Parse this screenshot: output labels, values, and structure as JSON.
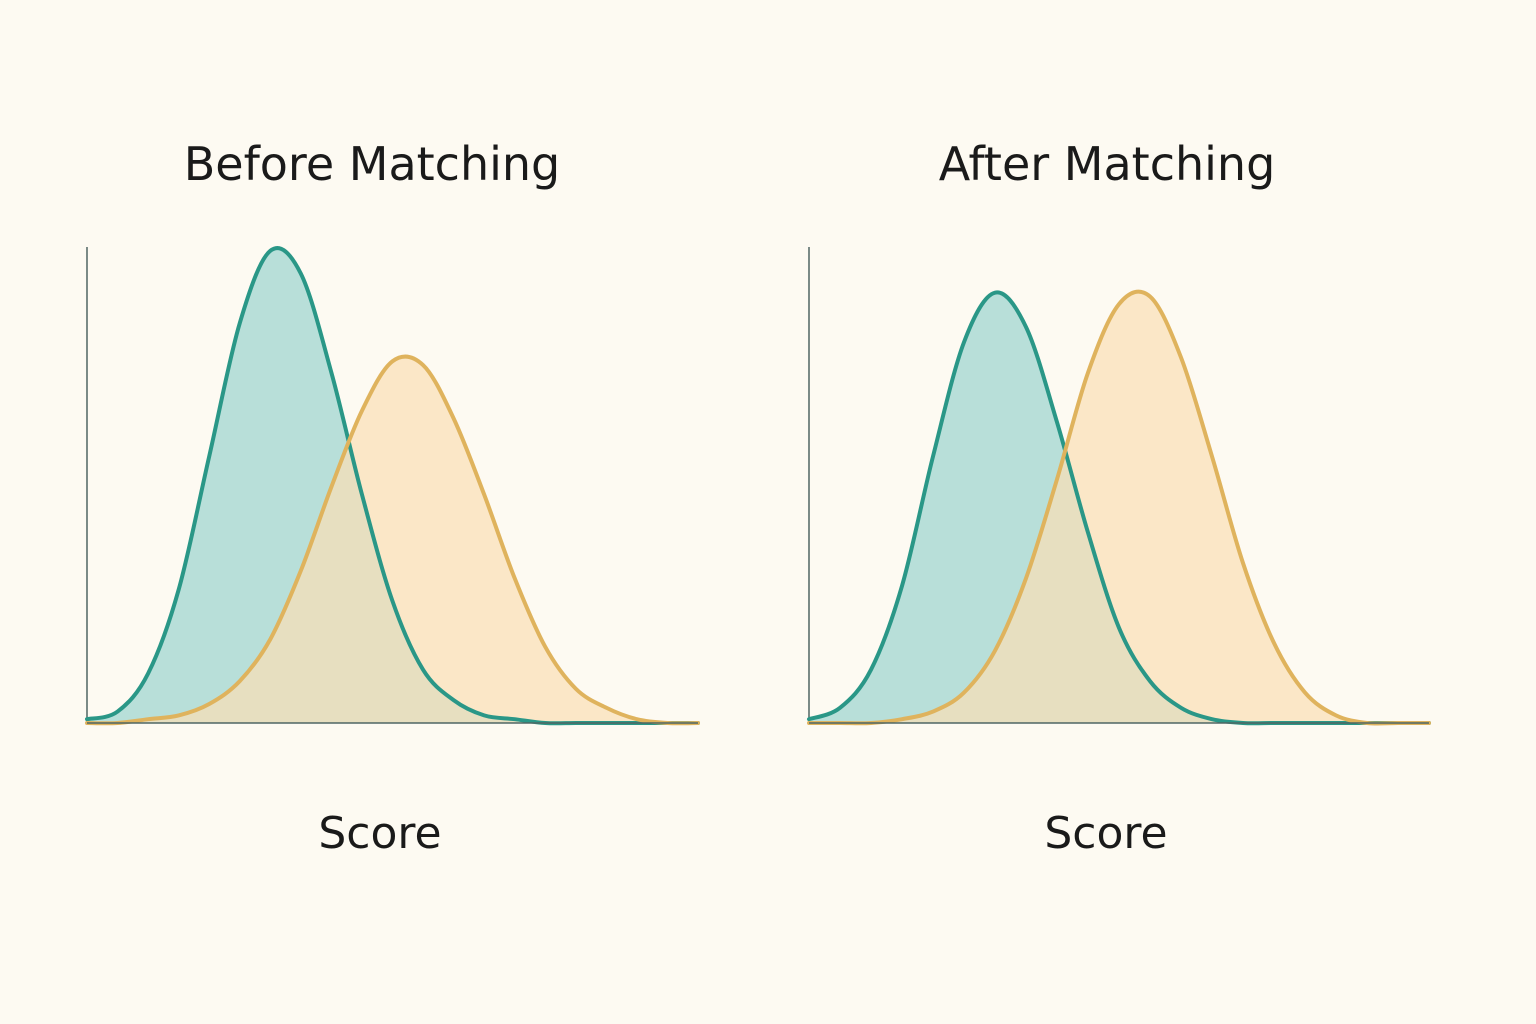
{
  "chart_data": [
    {
      "type": "area",
      "title": "Before Matching",
      "xlabel": "Score",
      "ylabel": "",
      "xlim": [
        0,
        10
      ],
      "ylim": [
        0,
        1.25
      ],
      "grid": false,
      "legend": "none",
      "x": [
        0.0,
        0.5,
        1.0,
        1.5,
        2.0,
        2.5,
        3.0,
        3.5,
        4.0,
        4.5,
        5.0,
        5.5,
        6.0,
        6.5,
        7.0,
        7.5,
        8.0,
        8.5,
        9.0,
        9.5,
        10.0
      ],
      "series": [
        {
          "color": "#2a9787",
          "fill": "#b4ddd7",
          "values": [
            0.01,
            0.03,
            0.13,
            0.35,
            0.7,
            1.05,
            1.24,
            1.18,
            0.92,
            0.6,
            0.32,
            0.14,
            0.06,
            0.02,
            0.01,
            0.0,
            0.0,
            0.0,
            0.0,
            0.0,
            0.0
          ]
        },
        {
          "color": "#dfb35d",
          "fill": "#f9dfb6",
          "values": [
            0.0,
            0.0,
            0.01,
            0.02,
            0.05,
            0.11,
            0.22,
            0.4,
            0.62,
            0.82,
            0.95,
            0.94,
            0.8,
            0.6,
            0.38,
            0.2,
            0.09,
            0.04,
            0.01,
            0.0,
            0.0
          ]
        }
      ]
    },
    {
      "type": "area",
      "title": "After Matching",
      "xlabel": "Score",
      "ylabel": "",
      "xlim": [
        0,
        10
      ],
      "ylim": [
        0,
        1.25
      ],
      "grid": false,
      "legend": "none",
      "x": [
        0.0,
        0.5,
        1.0,
        1.5,
        2.0,
        2.5,
        3.0,
        3.5,
        4.0,
        4.5,
        5.0,
        5.5,
        6.0,
        6.5,
        7.0,
        7.5,
        8.0,
        8.5,
        9.0,
        9.5,
        10.0
      ],
      "series": [
        {
          "color": "#2a9787",
          "fill": "#b4ddd7",
          "values": [
            0.01,
            0.04,
            0.14,
            0.36,
            0.7,
            1.0,
            1.13,
            1.04,
            0.79,
            0.5,
            0.25,
            0.11,
            0.04,
            0.01,
            0.0,
            0.0,
            0.0,
            0.0,
            0.0,
            0.0,
            0.0
          ]
        },
        {
          "color": "#dfb35d",
          "fill": "#f9dfb6",
          "values": [
            0.0,
            0.0,
            0.0,
            0.01,
            0.03,
            0.08,
            0.19,
            0.38,
            0.64,
            0.92,
            1.1,
            1.12,
            0.96,
            0.7,
            0.42,
            0.21,
            0.08,
            0.02,
            0.0,
            0.0,
            0.0
          ]
        }
      ]
    }
  ]
}
